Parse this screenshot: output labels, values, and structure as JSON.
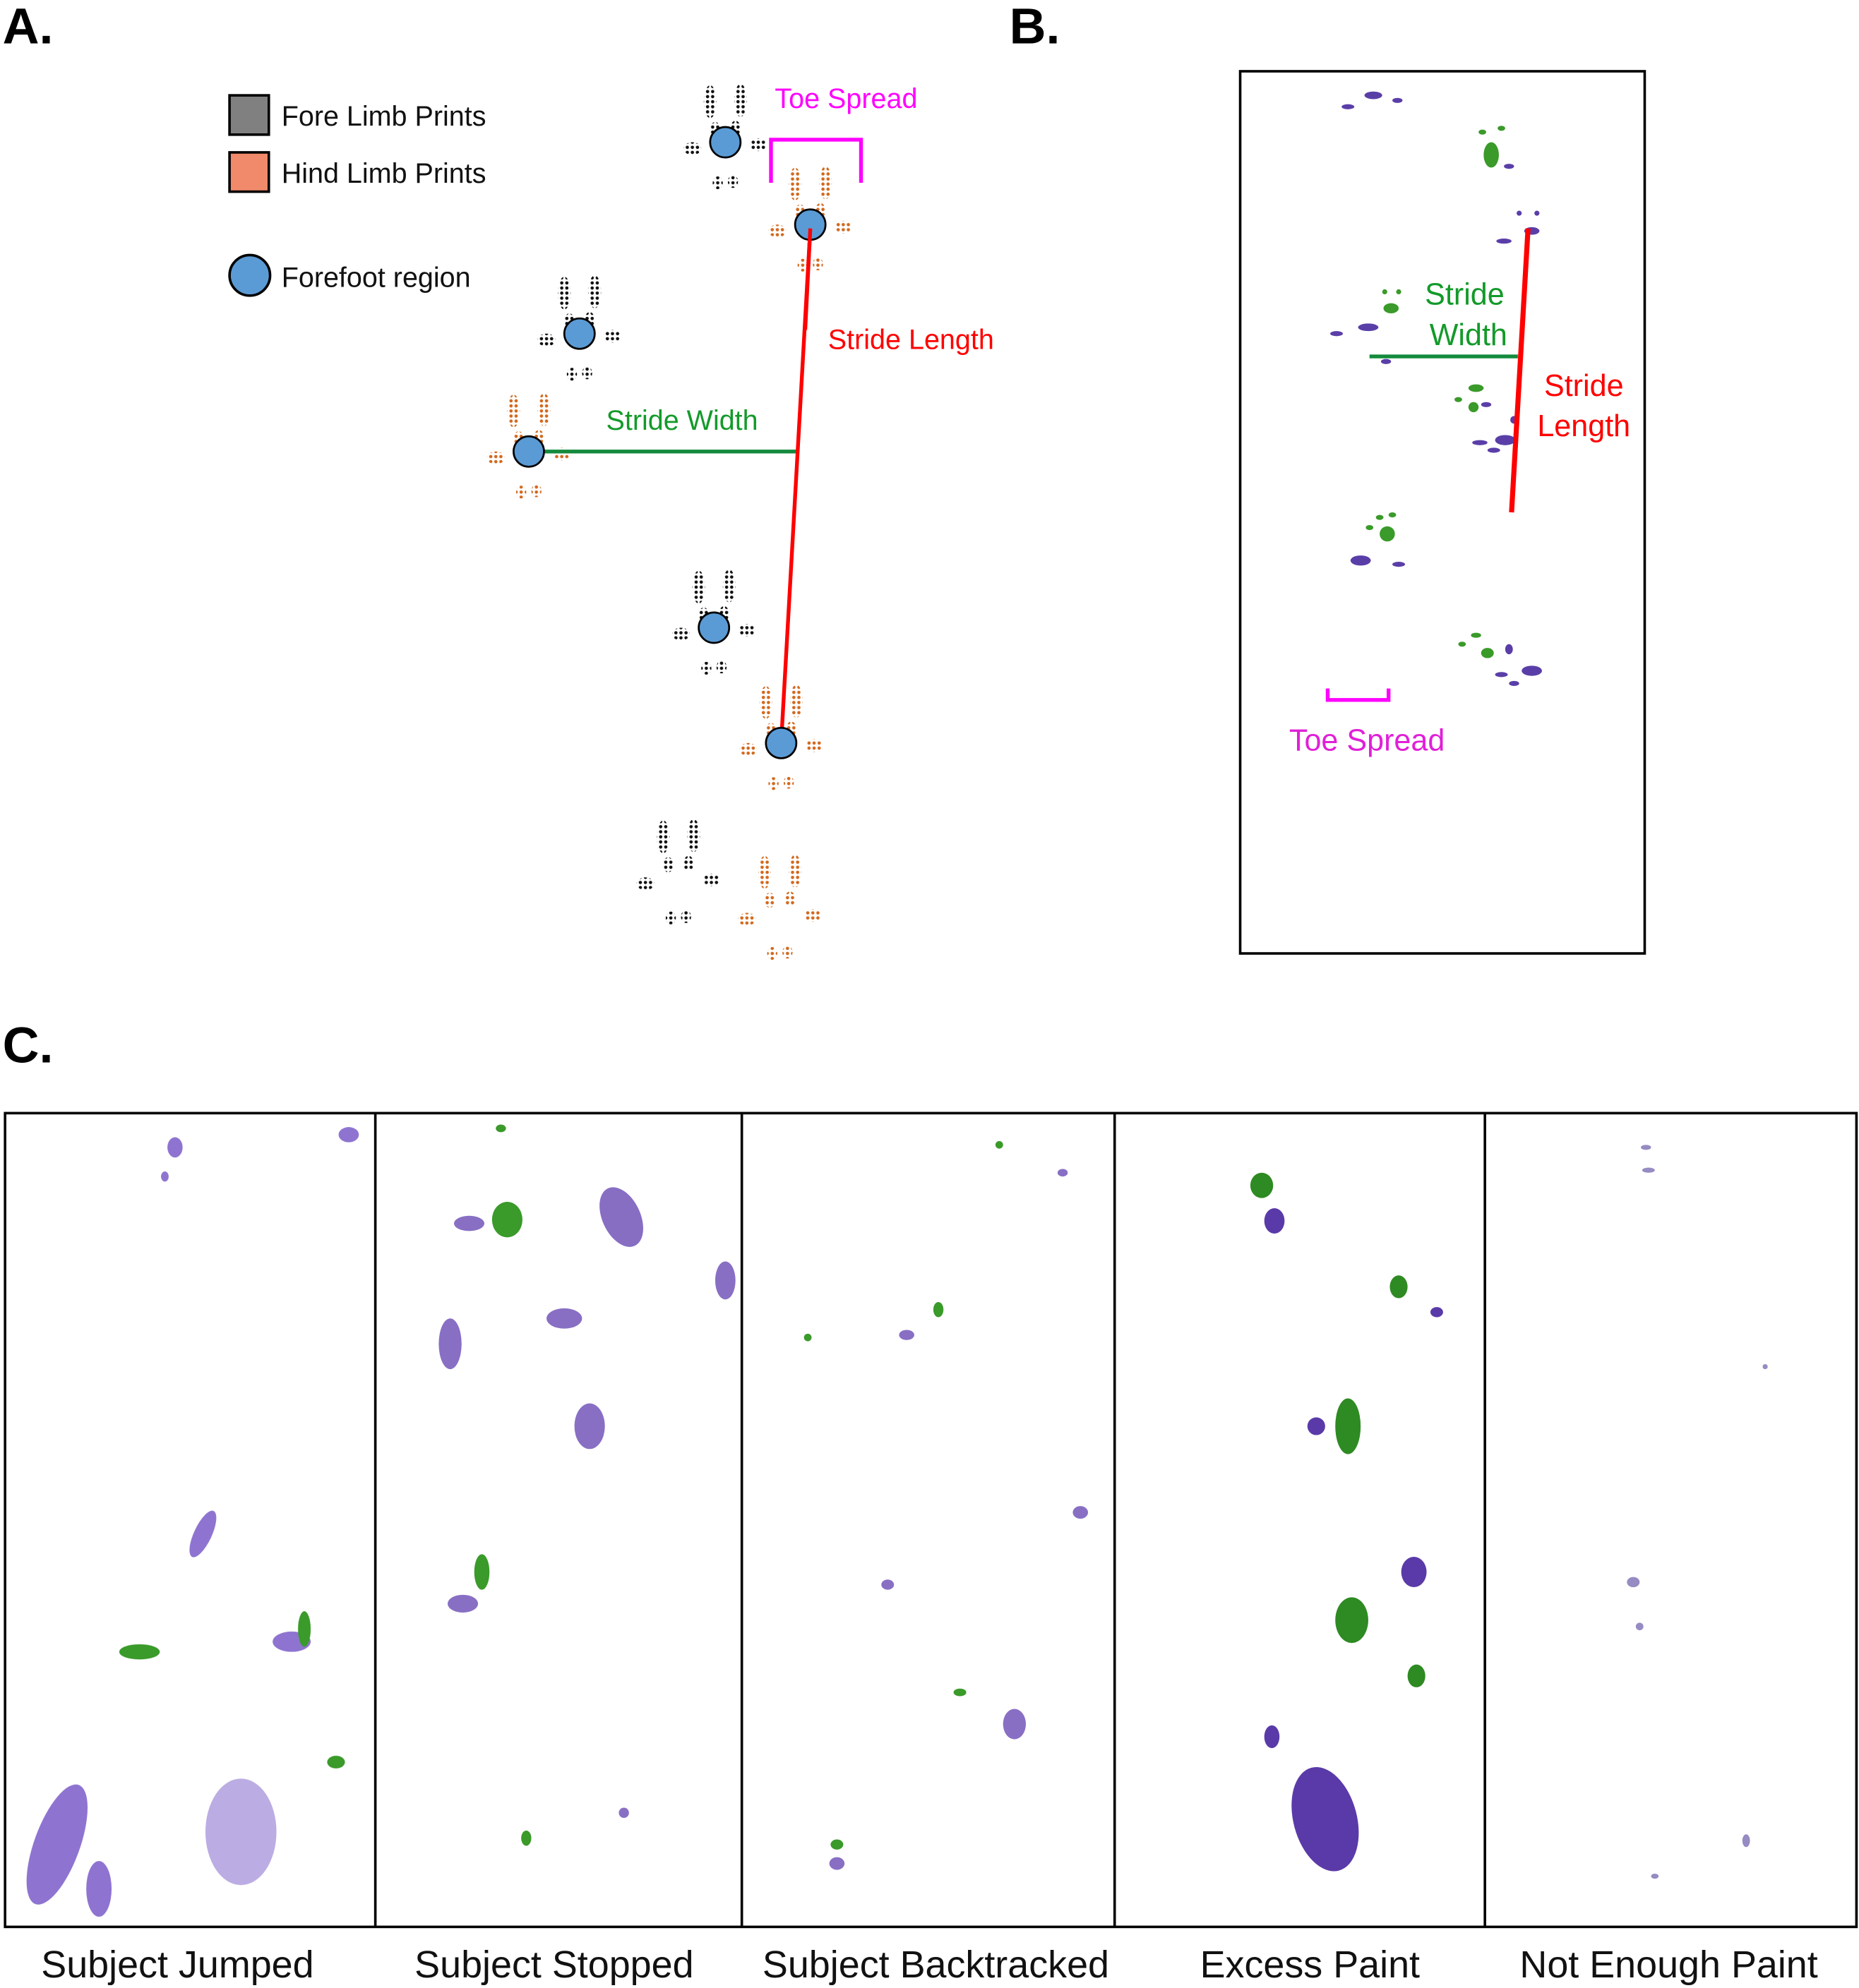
{
  "panels": {
    "a": {
      "label": "A.",
      "legend": [
        {
          "label": "Fore Limb Prints",
          "color": "#808080"
        },
        {
          "label": "Hind Limb Prints",
          "color": "#f08a6a"
        },
        {
          "label": "Forefoot region",
          "color": "#5b9bd5"
        }
      ],
      "annotations": {
        "toe_spread": "Toe Spread",
        "stride_length": "Stride Length",
        "stride_width": "Stride Width"
      }
    },
    "b": {
      "label": "B.",
      "annotations": {
        "stride_width_1": "Stride",
        "stride_width_2": "Width",
        "stride_length_1": "Stride",
        "stride_length_2": "Length",
        "toe_spread": "Toe Spread"
      }
    },
    "c": {
      "label": "C.",
      "captions": [
        "Subject Jumped",
        "Subject Stopped",
        "Subject Backtracked",
        "Excess Paint",
        "Not Enough Paint"
      ]
    }
  },
  "colors": {
    "fore_print": "#111111",
    "hind_print": "#d2691e",
    "forefoot": "#5b9bd5",
    "stride_length": "#ff0000",
    "stride_width": "#138a3c",
    "toe_spread": "#ff00ff",
    "paint_purple": "#6a4bb5",
    "paint_green": "#3a9a2a"
  }
}
